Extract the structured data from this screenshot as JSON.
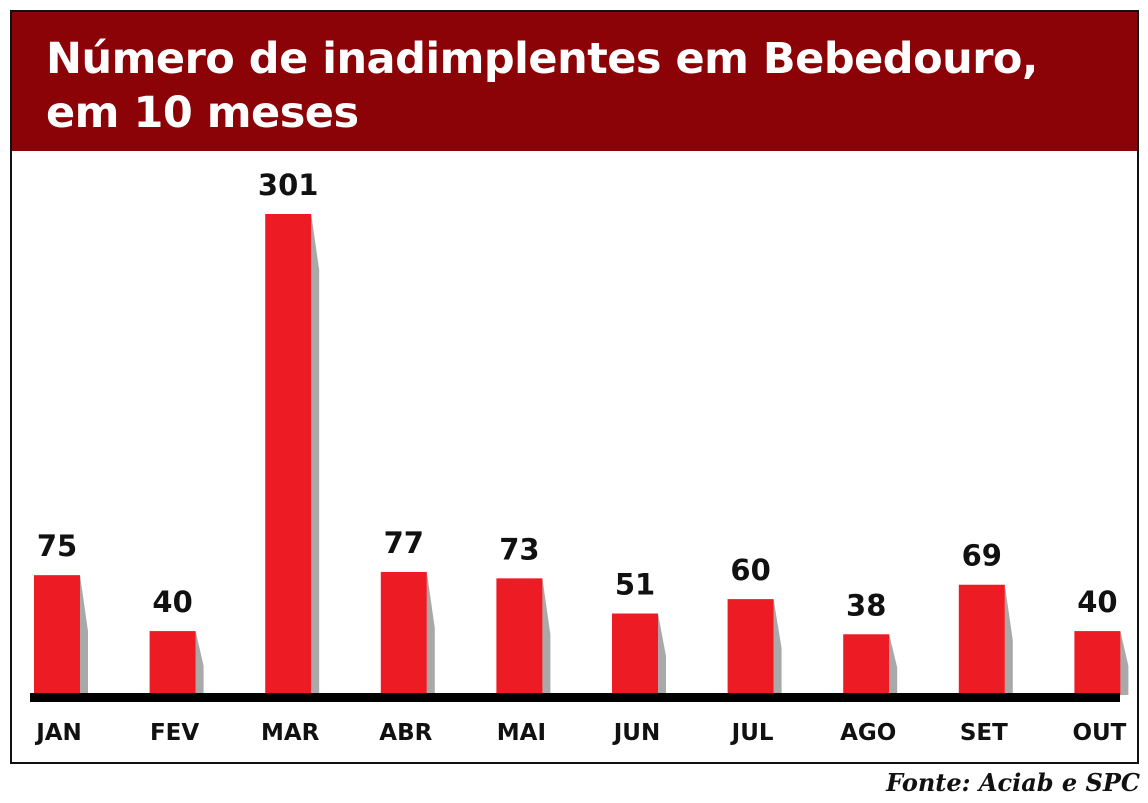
{
  "chart_data": {
    "type": "bar",
    "title": "Número de inadimplentes em Bebedouro, em 10 meses",
    "categories": [
      "JAN",
      "FEV",
      "MAR",
      "ABR",
      "MAI",
      "JUN",
      "JUL",
      "AGO",
      "SET",
      "OUT"
    ],
    "values": [
      75,
      40,
      301,
      77,
      73,
      51,
      60,
      38,
      69,
      40
    ],
    "data_labels": [
      "75",
      "40",
      "301",
      "77",
      "73",
      "51",
      "60",
      "38",
      "69",
      "40"
    ],
    "xlabel": "",
    "ylabel": "",
    "ylim": [
      0,
      301
    ],
    "grid": false,
    "legend": "none",
    "source": "Fonte: Aciab e SPC"
  },
  "colors": {
    "header": "#8b0207",
    "bar": "#ed1c24",
    "shadow": "#a9a9a9",
    "baseline": "#000000",
    "text": "#111111"
  }
}
